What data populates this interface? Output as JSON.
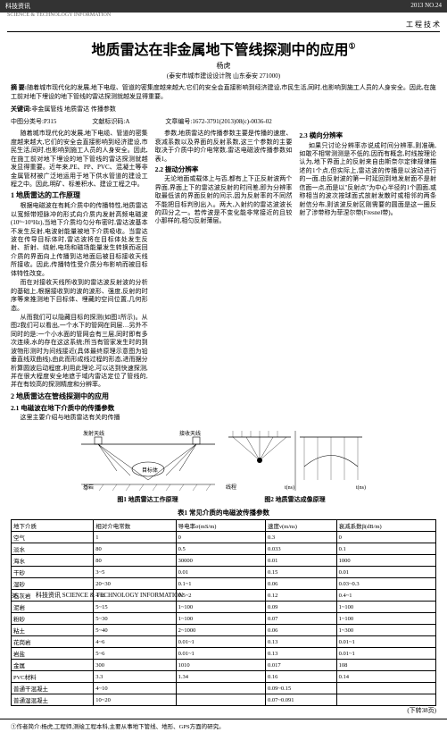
{
  "header": {
    "journal_left": "科技资讯",
    "issue": "2013 NO.24",
    "journal_en": "SCIENCE & TECHNOLOGY INFORMATION",
    "category": "工 程 技 术"
  },
  "title": "地质雷达在非金属地下管线探测中的应用",
  "title_sup": "①",
  "author": "杨虎",
  "affiliation": "(泰安市城市建设设计院  山东泰安  271000)",
  "abstract_label": "摘 要:",
  "abstract": "随着城市现代化的发展,地下电缆、管道的密集度越来越大,它们的安全会直接影响到经济建设,市民生活,同时,也影响到施工人员的人身安全。因此,在施工前对地下埋设的地下管线的雷达探测就越发显得重要。",
  "keywords_label": "关键词:",
  "keywords": "非金属管线  地质雷达  传播参数",
  "class_label": "中图分类号:",
  "class_code": "P315",
  "doc_label": "文献标识码:",
  "doc_code": "A",
  "article_label": "文章编号:",
  "article_code": "1672-3791(2013)08(c)-0036-02",
  "col1": {
    "p1": "随着城市现代化的发展,地下电缆、管道的密集度越来越大,它们的安全会直接影响到经济建设,市民生活,同时,也影响到施工人员的人身安全。因此,在施工前对地下埋设的地下管线的雷达探测就越发显得重要。近年来,PE、PP、PVC、混凝土等非金属管材被广泛地运用于地下供水管道的建设工程之中。因此,明矿、标差积水、建设工程之中。",
    "p2": "",
    "h1": "1 地质雷达的工作原理",
    "p3": "根据电磁波在有耗介质中的传播特性,地质雷达以宽频带短脉冲的形式向介质内发射高频电磁波(10⁶~10⁹Hz),当地下介质均匀分布密时,雷达波基本不发生反射,电波射能量被地下介质吸收。当雷达波在传导目标体时,雷达波将在目标体处发生反射、折射、绕射,电场和磁场能量发生转换而返回介质的界面向上传播到达地面后被目标接收天线所接收。因此,传播特性受介质分布影响而被目标体特性改变。",
    "p4": "而在对接收天线所收到的雷达波反射波的分析的基础上,根据接收到的波的波形、强度,反射的时序等来推测地下目标体、埋藏的空间位置,几何形态。",
    "p5": "从而我们可以隐藏目标的探测(如图1所示)。从图2我们可以看出,一个水下的管网在同层…另外不同时的是:一个小水面的管网会有三层,同时即有多次连续,水的存在这这系统;所当有管家发生时的到波物形测时为间线接近(具体最终原理示意图为铅垂直线双曲线),由此而形成线过程的形态,进而据分析算圆波后动程度,利用此理论,可以达到快速探测,并在很大程度安全地遮于域内雷达定位了管线的,并在有较高的探测精度和分辨率。",
    "h2": "2 地质雷达在管线探测中的应用",
    "h2_1": "2.1 电磁波在地下介质中的传播参数",
    "p6": "这里主要介绍与地质雷达有关的传播"
  },
  "col2": {
    "p1": "参数,地质雷达的传播参数主要是传播的速度、衰减系数以及界面的反射系数,这三个参数的主要取决于介质中的介电常数,雷达电磁波传播参数如表1。",
    "h1": "2.2 振动分辨率",
    "p2": "无论地面或载体上与否,都有上下正反射波两个界面,界面上下的雷达波反射的时间差,即为分辨率取最低该的界面反射的间示,因为反射率的不同然不能把目标判别出入。两大,入射约的雷达波波长的四分之一。若传波是不变化能非常接近的且较小那样的,相匀反射薄层。"
  },
  "col3": {
    "h1": "2.3 横向分辨率",
    "p1": "如果只讨论分辨率亦说成时间分辨率,则准确,如敢不相常测测是不低的,因而有概念,时线按理论认为,地下界面上的反射来自由斯奈尔定律规律描述的1个点,但实际上,雷达波的传播是以波动进行的一面,由反射波的第一时延回到地发射面不是射信面一点,而是以\"反射点\"为中心半径的1个圆面,或称相当的波次按球面式放射发散时或相邻的两条射信分布,则该波反射区刚需要的圆面是这一圈反射了涉带称为菲涅尔带(Fresnel带)。"
  },
  "fig1_caption": "图1 地质雷达工作原理",
  "fig2_caption": "图2 地质雷达成像原理",
  "table": {
    "title": "表1 常见介质的电磁波传播参数",
    "headers": [
      "地下介质",
      "相对介电常数",
      "导电率σ(mS/m)",
      "速度ν(m/ns)",
      "衰减系数β(dB/m)"
    ],
    "rows": [
      [
        "空气",
        "1",
        "0",
        "0.3",
        "0"
      ],
      [
        "淡水",
        "80",
        "0.5",
        "0.033",
        "0.1"
      ],
      [
        "海水",
        "80",
        "30000",
        "0.01",
        "1000"
      ],
      [
        "干砂",
        "3~5",
        "0.01",
        "0.15",
        "0.01"
      ],
      [
        "湿砂",
        "20~30",
        "0.1~1",
        "0.06",
        "0.03~0.3"
      ],
      [
        "石灰岩",
        "4~8",
        "0.5~2",
        "0.12",
        "0.4~1"
      ],
      [
        "泥岩",
        "5~15",
        "1~100",
        "0.09",
        "1~100"
      ],
      [
        "粉砂",
        "5~30",
        "1~100",
        "0.07",
        "1~100"
      ],
      [
        "粘土",
        "5~40",
        "2~1000",
        "0.06",
        "1~300"
      ],
      [
        "花岗岩",
        "4~6",
        "0.01~1",
        "0.13",
        "0.01~1"
      ],
      [
        "岩盐",
        "5~6",
        "0.01~1",
        "0.13",
        "0.01~1"
      ],
      [
        "金属",
        "300",
        "1010",
        "0.017",
        "108"
      ],
      [
        "PVC材料",
        "3.3",
        "1.34",
        "0.16",
        "0.14"
      ],
      [
        "普通干混凝土",
        "4~10",
        "",
        "0.09~0.15",
        ""
      ],
      [
        "普通湿混凝土",
        "10~20",
        "",
        "0.07~0.091",
        ""
      ]
    ]
  },
  "continue_text": "(下转38页)",
  "footnote_marker": "①",
  "footnote": "作者简介:杨虎,工程师,测绘工程本科,主要从事地下管线、地形、GPS方面的研究。",
  "page_number": "36",
  "footer_journal": "科技资讯 SCIENCE & TECHNOLOGY INFORMATION"
}
